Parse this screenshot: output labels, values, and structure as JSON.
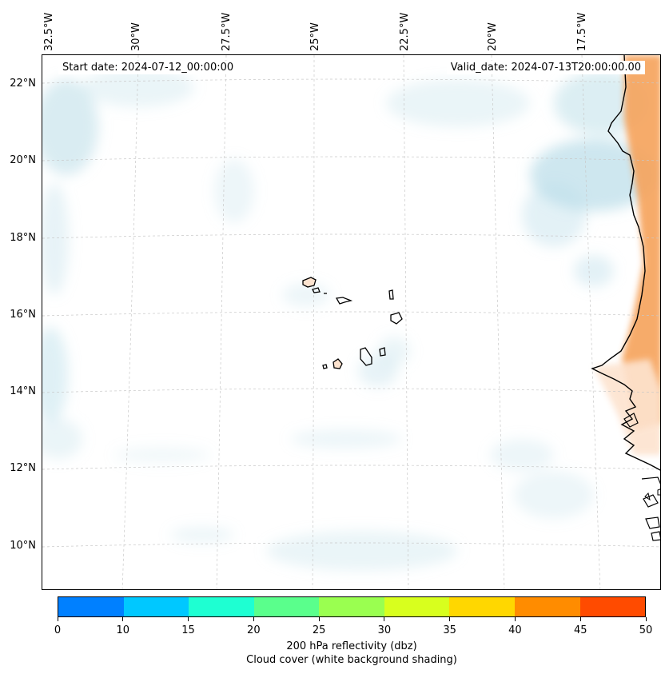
{
  "map": {
    "start_date": "Start date: 2024-07-12_00:00:00",
    "valid_date": "Valid_date: 2024-07-13T20:00:00.00",
    "longitude_labels": [
      "32.5°W",
      "30°W",
      "27.5°W",
      "25°W",
      "22.5°W",
      "20°W",
      "17.5°W"
    ],
    "latitude_labels": [
      "22°N",
      "20°N",
      "18°N",
      "16°N",
      "14°N",
      "12°N",
      "10°N"
    ],
    "cloud_color": "#b9dde8",
    "land_fill_color": "#fde3cf",
    "land_hot_color": "#f6a25a",
    "coastline_color": "#000000"
  },
  "colorbar": {
    "tick_labels": [
      "0",
      "10",
      "15",
      "20",
      "25",
      "30",
      "35",
      "40",
      "45",
      "50"
    ],
    "colors": [
      "#0080ff",
      "#00c8ff",
      "#1effd2",
      "#5aff8c",
      "#9aff50",
      "#d8ff1e",
      "#ffd700",
      "#ff8c00",
      "#ff4b00"
    ],
    "label_line1": "200 hPa reflectivity (dbz)",
    "label_line2": "Cloud cover (white background shading)"
  }
}
